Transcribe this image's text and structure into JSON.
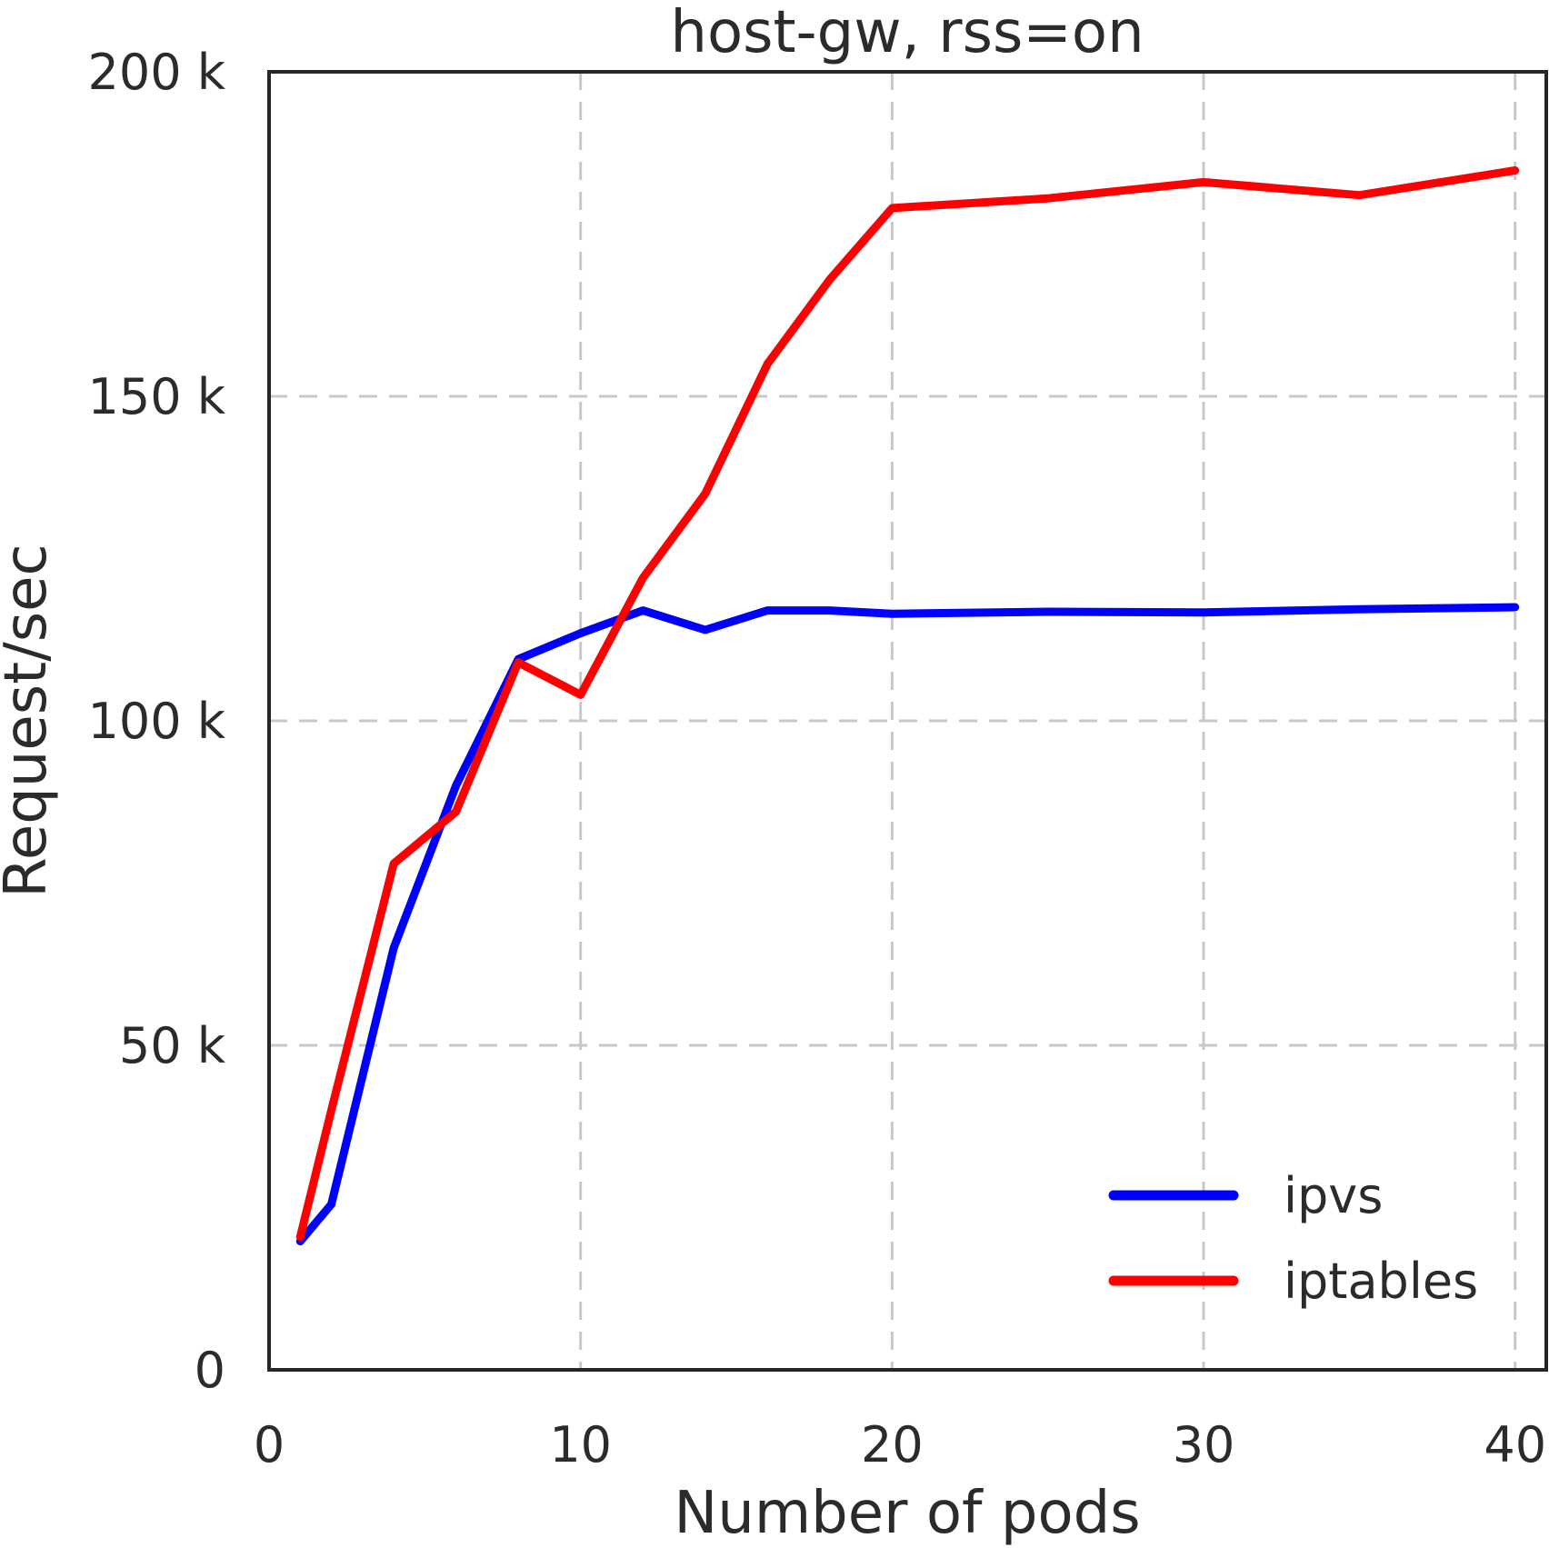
{
  "chart_data": {
    "type": "line",
    "title": "host-gw, rss=on",
    "xlabel": "Number of pods",
    "ylabel": "Request/sec",
    "xlim": [
      0,
      41
    ],
    "ylim": [
      0,
      200000
    ],
    "x_ticks": [
      0,
      10,
      20,
      30,
      40
    ],
    "x_tick_labels": [
      "0",
      "10",
      "20",
      "30",
      "40"
    ],
    "y_ticks": [
      0,
      50000,
      100000,
      150000,
      200000
    ],
    "y_tick_labels": [
      "0",
      "50 k",
      "100 k",
      "150 k",
      "200 k"
    ],
    "grid": true,
    "legend_position": "lower-right",
    "series": [
      {
        "name": "ipvs",
        "color": "#0000ff",
        "x": [
          1,
          2,
          4,
          6,
          8,
          10,
          12,
          14,
          16,
          18,
          20,
          25,
          30,
          35,
          40
        ],
        "y": [
          19800,
          25500,
          65000,
          90000,
          109500,
          113500,
          117000,
          114000,
          117000,
          117000,
          116500,
          116800,
          116700,
          117200,
          117500
        ]
      },
      {
        "name": "iptables",
        "color": "#ff0000",
        "x": [
          1,
          2,
          4,
          6,
          8,
          10,
          12,
          14,
          16,
          18,
          20,
          25,
          30,
          35,
          40
        ],
        "y": [
          20500,
          40000,
          78000,
          86000,
          109000,
          104000,
          122000,
          135000,
          155000,
          168000,
          179000,
          180500,
          183000,
          181000,
          184800
        ]
      }
    ]
  }
}
